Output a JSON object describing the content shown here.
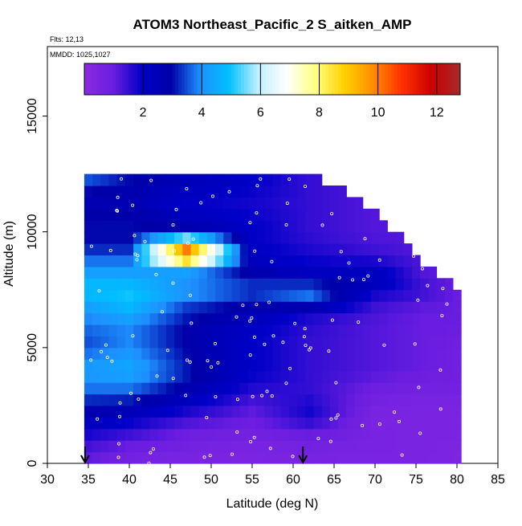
{
  "chart_data": {
    "type": "heatmap",
    "title": "ATOM3 Northeast_Pacific_2 S_aitken_AMP",
    "flights_label": "Flts: 12,13",
    "dates_label": "MMDD: 1025,1027",
    "xlabel": "Latitude (deg N)",
    "ylabel": "Altitude (m)",
    "xlim": [
      30,
      85
    ],
    "ylim": [
      0,
      18000
    ],
    "x_ticks": [
      30,
      35,
      40,
      45,
      50,
      55,
      60,
      65,
      70,
      75,
      80,
      85
    ],
    "y_ticks": [
      0,
      5000,
      10000,
      15000
    ],
    "colorbar": {
      "range": [
        0,
        12.8
      ],
      "ticks": [
        2,
        4,
        6,
        8,
        10,
        12
      ],
      "colors": [
        "#8a2be2",
        "#6a1de0",
        "#0000c8",
        "#0000a8",
        "#1e90ff",
        "#00bfff",
        "#bfefff",
        "#ffffff",
        "#ffff80",
        "#ffd000",
        "#ff8c00",
        "#ff3000",
        "#cc0000",
        "#a52a2a"
      ]
    },
    "arrows_latitude": [
      34.6,
      61.2
    ],
    "grid_bins": {
      "lat_step": 1,
      "alt_step": 500
    },
    "columns": [
      {
        "lat": 35,
        "alt_max": 12500,
        "value_profile": [
          1.0,
          1.2,
          1.5,
          2.0,
          2.5,
          3.0,
          3.5,
          4.0,
          4.2,
          4.0,
          3.5,
          3.5,
          3.8,
          4.0,
          4.5,
          5.0,
          4.5,
          4.0,
          3.5,
          3.0,
          3.0,
          3.0,
          2.8,
          2.5,
          3.5
        ]
      },
      {
        "lat": 40,
        "alt_max": 12500,
        "value_profile": [
          0.6,
          0.8,
          1.2,
          1.6,
          2.2,
          2.8,
          3.5,
          4.0,
          4.5,
          4.2,
          4.0,
          3.8,
          4.0,
          4.5,
          5.0,
          5.0,
          4.5,
          4.0,
          3.5,
          3.0,
          3.0,
          3.0,
          2.8,
          2.5,
          3.0
        ]
      },
      {
        "lat": 47,
        "alt_max": 12500,
        "value_profile": [
          0.5,
          0.6,
          0.8,
          1.0,
          1.5,
          2.0,
          2.5,
          3.0,
          3.2,
          3.0,
          3.0,
          2.8,
          3.0,
          3.2,
          3.5,
          4.5,
          3.5,
          5.0,
          12.0,
          8.0,
          3.0,
          2.5,
          2.0,
          2.0,
          2.5
        ]
      },
      {
        "lat": 55,
        "alt_max": 12500,
        "value_profile": [
          0.4,
          0.5,
          0.6,
          0.8,
          1.0,
          1.2,
          1.5,
          1.8,
          2.0,
          2.0,
          2.0,
          2.0,
          2.2,
          2.5,
          3.0,
          3.5,
          3.0,
          2.5,
          2.2,
          2.0,
          2.0,
          2.0,
          1.8,
          1.8,
          2.0
        ]
      },
      {
        "lat": 62,
        "alt_max": 12500,
        "value_profile": [
          0.5,
          0.6,
          0.8,
          1.2,
          1.8,
          1.8,
          1.5,
          1.5,
          1.5,
          1.5,
          1.5,
          1.5,
          1.6,
          1.8,
          3.5,
          4.0,
          2.5,
          2.0,
          1.8,
          1.6,
          1.5,
          1.5,
          1.5,
          1.5,
          1.5
        ]
      },
      {
        "lat": 70,
        "alt_max": 11000,
        "value_profile": [
          0.5,
          0.5,
          0.6,
          0.5,
          0.5,
          0.6,
          0.8,
          1.0,
          1.2,
          1.2,
          1.2,
          1.2,
          1.2,
          1.3,
          1.5,
          2.0,
          2.5,
          2.0,
          1.5,
          1.3,
          1.2,
          1.2
        ]
      },
      {
        "lat": 76,
        "alt_max": 8500,
        "value_profile": [
          0.5,
          0.5,
          0.5,
          0.5,
          0.5,
          0.5,
          0.6,
          0.8,
          1.0,
          1.0,
          1.0,
          1.0,
          1.0,
          1.0,
          1.2,
          1.5,
          1.2
        ]
      },
      {
        "lat": 80,
        "alt_max": 7500,
        "value_profile": [
          0.4,
          0.4,
          0.5,
          0.5,
          0.5,
          0.5,
          0.6,
          0.8,
          0.8,
          0.8,
          0.8,
          0.9,
          1.0,
          1.0,
          1.0
        ]
      }
    ]
  }
}
